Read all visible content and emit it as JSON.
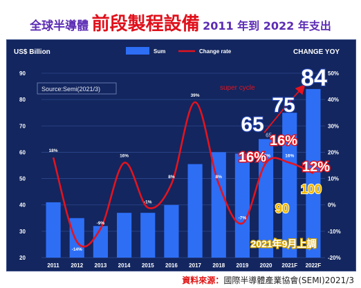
{
  "header": {
    "title_prefix": "全球半導體",
    "title_main": "前段製程設備",
    "title_suffix": "2011 年到 2022 年支出"
  },
  "footer": {
    "label": "資料來源：",
    "value": "國際半導體產業協會(SEMI)2021/3"
  },
  "colors": {
    "background": "#13265f",
    "bar": "#2d6ef5",
    "line": "#e4131e",
    "title_purple": "#5b2bb4",
    "title_red": "#e0101b"
  },
  "chart_data": {
    "type": "bar",
    "categories": [
      "2011",
      "2012",
      "2013",
      "2014",
      "2015",
      "2016",
      "2017",
      "2018",
      "2019",
      "2020",
      "2021F",
      "2022F"
    ],
    "y_left_label": "US$ Billion",
    "y_right_label": "CHANGE  YOY",
    "ylim": [
      20,
      90
    ],
    "y_ticks": [
      20,
      30,
      40,
      50,
      60,
      70,
      80,
      90
    ],
    "y2lim": [
      -20,
      50
    ],
    "y2_ticks": [
      "-20%",
      "-10%",
      "0%",
      "10%",
      "20%",
      "30%",
      "40%",
      "50%"
    ],
    "y2_tick_values": [
      -20,
      -10,
      0,
      10,
      20,
      30,
      40,
      50
    ],
    "grid": true,
    "legend_position": "top",
    "source_note": "Source:Semi(2021/3)",
    "series": [
      {
        "name": "Sum",
        "kind": "bar",
        "values": [
          41,
          35,
          32,
          37,
          37,
          40,
          55.5,
          60,
          59.5,
          65,
          75,
          84
        ]
      },
      {
        "name": "Change rate",
        "kind": "line",
        "values": [
          18,
          -14,
          -9,
          16,
          -1,
          8,
          39,
          8,
          -7,
          16,
          16,
          12
        ]
      }
    ],
    "change_labels": [
      "18%",
      "-14%",
      "-9%",
      "16%",
      "-1%",
      "8%",
      "39%",
      "8%",
      "-7%",
      "16%",
      "16%",
      ""
    ],
    "bar_top_labels": {
      "2020": "65"
    },
    "annotations": {
      "big_values": [
        "65",
        "75",
        "84"
      ],
      "big_percents": [
        "16%",
        "16%",
        "12%"
      ],
      "revised_values": [
        "90",
        "100"
      ],
      "super_cycle": "super cycle",
      "revision_note": "2021年9月上調"
    }
  }
}
